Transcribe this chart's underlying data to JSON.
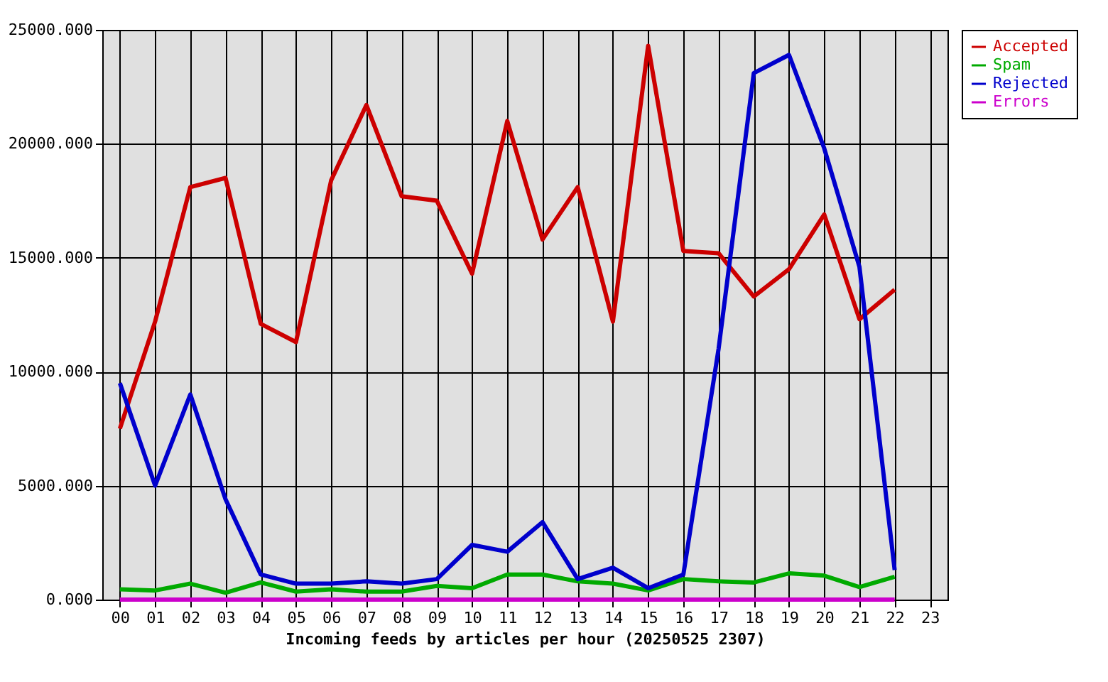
{
  "chart_data": {
    "type": "line",
    "xlabel": "Incoming feeds by articles per hour (20250525 2307)",
    "categories": [
      "00",
      "01",
      "02",
      "03",
      "04",
      "05",
      "06",
      "07",
      "08",
      "09",
      "10",
      "11",
      "12",
      "13",
      "14",
      "15",
      "16",
      "17",
      "18",
      "19",
      "20",
      "21",
      "22",
      "23"
    ],
    "series": [
      {
        "name": "Accepted",
        "color": "#cc0000",
        "values": [
          7500,
          12200,
          18100,
          18500,
          12100,
          11300,
          18400,
          21700,
          17700,
          17500,
          14300,
          21000,
          15800,
          18100,
          12200,
          24300,
          15300,
          15200,
          13300,
          14500,
          16900,
          12300,
          13600,
          null
        ]
      },
      {
        "name": "Spam",
        "color": "#00aa00",
        "values": [
          450,
          400,
          700,
          300,
          750,
          350,
          450,
          350,
          350,
          600,
          500,
          1100,
          1100,
          800,
          700,
          400,
          900,
          800,
          750,
          1150,
          1050,
          550,
          1000,
          null
        ]
      },
      {
        "name": "Rejected",
        "color": "#0000cc",
        "values": [
          9500,
          5000,
          9000,
          4400,
          1100,
          700,
          700,
          800,
          700,
          900,
          2400,
          2100,
          3400,
          900,
          1400,
          500,
          1100,
          11000,
          23100,
          23900,
          19800,
          14600,
          1300,
          null
        ]
      },
      {
        "name": "Errors",
        "color": "#cc00cc",
        "values": [
          0,
          0,
          0,
          0,
          0,
          0,
          0,
          0,
          0,
          0,
          0,
          0,
          0,
          0,
          0,
          0,
          0,
          0,
          0,
          0,
          0,
          0,
          0,
          null
        ]
      }
    ],
    "ylim": [
      0,
      25000
    ],
    "yticks": [
      {
        "value": 0,
        "label": "0.000"
      },
      {
        "value": 5000,
        "label": "5000.000"
      },
      {
        "value": 10000,
        "label": "10000.000"
      },
      {
        "value": 15000,
        "label": "15000.000"
      },
      {
        "value": 20000,
        "label": "20000.000"
      },
      {
        "value": 25000,
        "label": "25000.000"
      }
    ],
    "grid": true,
    "legend": "top right"
  }
}
